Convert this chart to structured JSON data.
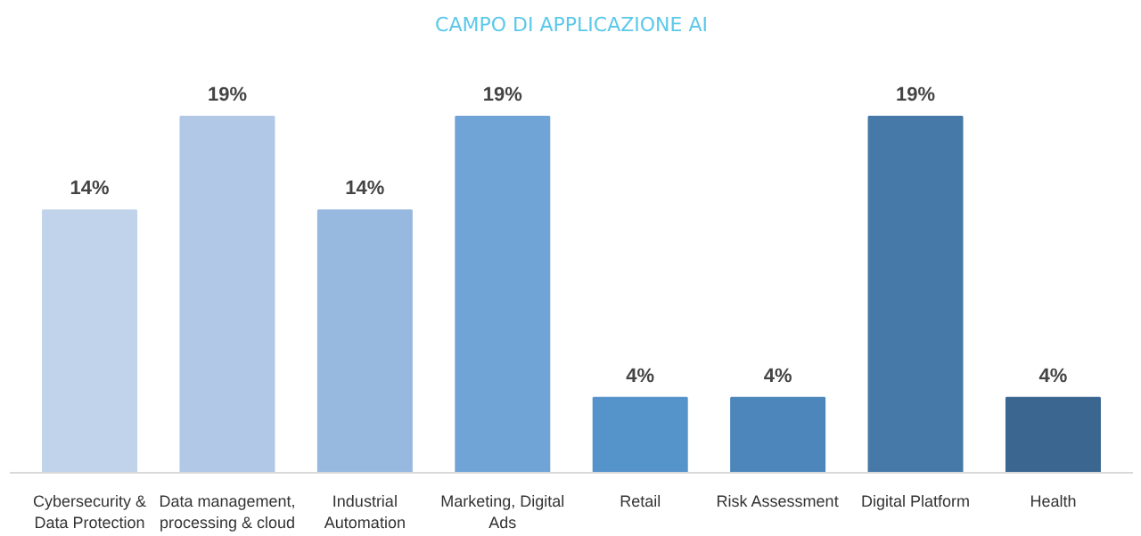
{
  "chart_data": {
    "type": "bar",
    "title": "CAMPO DI APPLICAZIONE AI",
    "categories": [
      "Cybersecurity & Data Protection",
      "Data management, processing & cloud",
      "Industrial Automation",
      "Marketing, Digital Ads",
      "Retail",
      "Risk Assessment",
      "Digital Platform",
      "Health"
    ],
    "values": [
      14,
      19,
      14,
      19,
      4,
      4,
      19,
      4
    ],
    "value_labels": [
      "14%",
      "19%",
      "14%",
      "19%",
      "4%",
      "4%",
      "19%",
      "4%"
    ],
    "colors": [
      "#c0d3ea",
      "#b1c8e6",
      "#97b8df",
      "#71a4d6",
      "#5593cb",
      "#4d86bb",
      "#4679a8",
      "#3b6690"
    ],
    "grid": false
  }
}
